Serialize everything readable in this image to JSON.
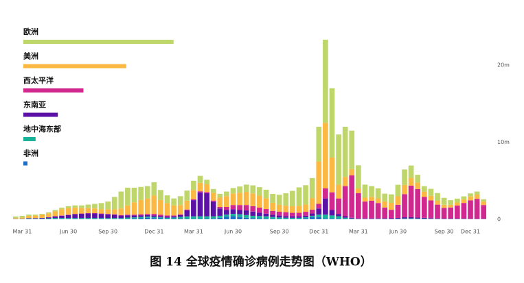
{
  "chart_data": {
    "type": "stacked-bar",
    "title": "图 14 全球疫情确诊病例走势图（WHO）",
    "categories": [
      null,
      "Mar 31",
      null,
      null,
      null,
      null,
      null,
      null,
      "Jun 30",
      null,
      null,
      null,
      null,
      null,
      "Sep 30",
      null,
      null,
      null,
      null,
      null,
      null,
      "Dec 31",
      null,
      null,
      null,
      null,
      null,
      "Mar 31",
      null,
      null,
      null,
      null,
      null,
      "Jun 30",
      null,
      null,
      null,
      null,
      null,
      null,
      "Sep 30",
      null,
      null,
      null,
      null,
      null,
      "Dec 31",
      null,
      null,
      null,
      null,
      null,
      "Mar 31",
      null,
      null,
      null,
      null,
      null,
      "Jun 30",
      null,
      null,
      null,
      null,
      null,
      null,
      "Sep 30",
      null,
      null,
      null,
      "Dec 31",
      null,
      null
    ],
    "series": [
      {
        "name": "欧洲",
        "color": "#bfd66b",
        "total": 270,
        "values": [
          0.2,
          0.2,
          0.15,
          0.12,
          0.12,
          0.13,
          0.15,
          0.2,
          0.25,
          0.3,
          0.35,
          0.45,
          0.6,
          0.8,
          1.0,
          1.6,
          2.2,
          2.3,
          1.9,
          1.7,
          1.6,
          1.7,
          1.3,
          1.0,
          0.9,
          1.15,
          1.3,
          1.2,
          0.9,
          0.6,
          0.5,
          0.5,
          0.6,
          0.7,
          0.8,
          0.95,
          1.05,
          1.1,
          1.1,
          1.15,
          1.3,
          1.6,
          2.0,
          2.4,
          2.5,
          2.6,
          4.5,
          10.8,
          9.0,
          6.5,
          6.5,
          5.0,
          3.0,
          1.7,
          1.4,
          1.3,
          1.0,
          1.1,
          1.5,
          2.0,
          1.6,
          1.0,
          0.7,
          0.9,
          1.0,
          0.9,
          0.6,
          0.5,
          0.4,
          0.4,
          0.4,
          0.3
        ]
      },
      {
        "name": "美洲",
        "color": "#fbb843",
        "total": 185,
        "values": [
          0.1,
          0.18,
          0.3,
          0.33,
          0.4,
          0.5,
          0.65,
          0.8,
          0.85,
          0.8,
          0.7,
          0.65,
          0.6,
          0.55,
          0.6,
          0.65,
          0.85,
          1.2,
          1.6,
          1.85,
          2.0,
          2.4,
          1.9,
          1.6,
          1.3,
          1.2,
          1.15,
          1.2,
          1.1,
          1.0,
          1.0,
          1.2,
          1.4,
          1.5,
          1.6,
          1.7,
          1.65,
          1.55,
          1.4,
          1.05,
          0.9,
          0.85,
          0.85,
          0.9,
          0.95,
          1.5,
          5.5,
          8.5,
          4.5,
          1.8,
          1.2,
          0.8,
          0.6,
          0.5,
          0.5,
          0.6,
          0.8,
          0.9,
          1.1,
          1.2,
          1.0,
          0.85,
          0.7,
          0.6,
          0.5,
          0.4,
          0.35,
          0.4,
          0.45,
          0.5,
          0.55,
          0.45
        ]
      },
      {
        "name": "西太平洋",
        "color": "#d1288f",
        "total": 108,
        "values": [
          0.01,
          0.01,
          0.01,
          0.01,
          0.01,
          0.02,
          0.02,
          0.03,
          0.04,
          0.04,
          0.04,
          0.03,
          0.04,
          0.05,
          0.05,
          0.06,
          0.07,
          0.08,
          0.1,
          0.13,
          0.15,
          0.2,
          0.18,
          0.15,
          0.12,
          0.1,
          0.1,
          0.12,
          0.14,
          0.15,
          0.15,
          0.2,
          0.4,
          0.55,
          0.65,
          0.7,
          0.7,
          0.65,
          0.6,
          0.5,
          0.5,
          0.5,
          0.45,
          0.45,
          0.5,
          0.5,
          0.6,
          1.3,
          2.3,
          2.0,
          3.9,
          5.5,
          3.3,
          2.2,
          2.3,
          2.0,
          1.4,
          1.1,
          1.7,
          3.0,
          4.1,
          3.7,
          2.7,
          2.3,
          1.8,
          1.4,
          1.45,
          1.7,
          2.05,
          2.4,
          2.6,
          1.8
        ]
      },
      {
        "name": "东南亚",
        "color": "#5b10a6",
        "total": 62,
        "values": [
          0.01,
          0.02,
          0.05,
          0.06,
          0.08,
          0.12,
          0.2,
          0.3,
          0.4,
          0.5,
          0.55,
          0.6,
          0.6,
          0.55,
          0.5,
          0.43,
          0.33,
          0.3,
          0.25,
          0.23,
          0.2,
          0.2,
          0.17,
          0.15,
          0.15,
          0.25,
          0.8,
          2.1,
          3.1,
          3.0,
          1.9,
          0.95,
          0.6,
          0.6,
          0.55,
          0.6,
          0.55,
          0.45,
          0.35,
          0.3,
          0.25,
          0.22,
          0.2,
          0.2,
          0.2,
          0.3,
          0.8,
          2.1,
          0.7,
          0.3,
          0.2,
          0.1,
          0.05,
          0.05,
          0.05,
          0.06,
          0.07,
          0.08,
          0.1,
          0.15,
          0.15,
          0.12,
          0.1,
          0.08,
          0.05,
          0.04,
          0.04,
          0.04,
          0.03,
          0.03,
          0.02,
          0.02
        ]
      },
      {
        "name": "地中海东部",
        "color": "#1ab39a",
        "total": 22,
        "values": [
          0.02,
          0.03,
          0.06,
          0.06,
          0.07,
          0.08,
          0.1,
          0.1,
          0.1,
          0.1,
          0.11,
          0.12,
          0.12,
          0.12,
          0.12,
          0.13,
          0.12,
          0.16,
          0.15,
          0.16,
          0.16,
          0.14,
          0.12,
          0.12,
          0.15,
          0.2,
          0.3,
          0.32,
          0.33,
          0.3,
          0.28,
          0.25,
          0.25,
          0.3,
          0.35,
          0.35,
          0.3,
          0.3,
          0.28,
          0.22,
          0.18,
          0.15,
          0.14,
          0.12,
          0.12,
          0.15,
          0.3,
          0.5,
          0.4,
          0.3,
          0.15,
          0.07,
          0.03,
          0.03,
          0.03,
          0.03,
          0.03,
          0.03,
          0.05,
          0.08,
          0.1,
          0.08,
          0.07,
          0.05,
          0.04,
          0.03,
          0.03,
          0.03,
          0.03,
          0.02,
          0.02,
          0.02
        ]
      },
      {
        "name": "非洲",
        "color": "#1f6fc5",
        "total": 7.4,
        "values": [
          0.01,
          0.01,
          0.03,
          0.02,
          0.02,
          0.05,
          0.08,
          0.07,
          0.06,
          0.06,
          0.05,
          0.05,
          0.04,
          0.03,
          0.03,
          0.03,
          0.03,
          0.06,
          0.1,
          0.13,
          0.19,
          0.16,
          0.13,
          0.08,
          0.08,
          0.1,
          0.07,
          0.06,
          0.06,
          0.08,
          0.1,
          0.2,
          0.35,
          0.4,
          0.3,
          0.2,
          0.15,
          0.12,
          0.1,
          0.07,
          0.05,
          0.05,
          0.05,
          0.07,
          0.15,
          0.3,
          0.3,
          0.1,
          0.1,
          0.1,
          0.05,
          0.03,
          0.02,
          0.02,
          0.02,
          0.02,
          0.02,
          0.02,
          0.03,
          0.03,
          0.02,
          0.02,
          0.02,
          0.02,
          0.01,
          0.01,
          0.01,
          0.01,
          0.01,
          0.01,
          0.01,
          0.01
        ]
      }
    ],
    "ylim": [
      0,
      24
    ],
    "yticks": [
      0,
      {
        "value": 10,
        "label": "10m"
      },
      {
        "value": 20,
        "label": "20m"
      }
    ],
    "grid": false
  }
}
